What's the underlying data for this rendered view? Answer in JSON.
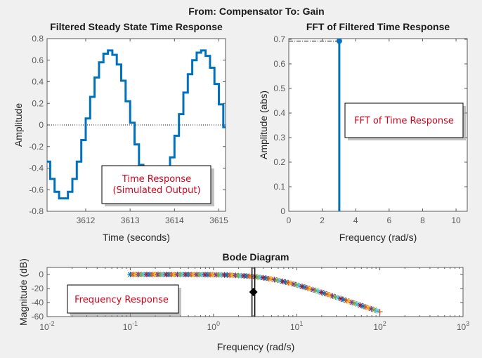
{
  "figure_title": "From: Compensator  To: Gain",
  "colors": {
    "line": "#0072BD",
    "axis": "#5a5a5a",
    "note": "#d0021b",
    "markers": [
      "#0072BD",
      "#D95319",
      "#EDB120",
      "#7E2F8E",
      "#77AC30",
      "#4DBEEE",
      "#A2142F"
    ]
  },
  "chart_data": [
    {
      "type": "line",
      "title": "Filtered Steady State Time Response",
      "xlabel": "Time (seconds)",
      "ylabel": "Amplitude",
      "xlim": [
        3611.13,
        3615.15
      ],
      "ylim": [
        -0.8,
        0.8
      ],
      "xticks": [
        3612,
        3613,
        3614,
        3615
      ],
      "xtick_labels": [
        "3612",
        "3613",
        "3614",
        "3615"
      ],
      "yticks": [
        -0.8,
        -0.6,
        -0.4,
        -0.2,
        0,
        0.2,
        0.4,
        0.6,
        0.8
      ],
      "ytick_labels": [
        "-0.8",
        "-0.6",
        "-0.4",
        "-0.2",
        "0",
        "0.2",
        "0.4",
        "0.6",
        "0.8"
      ],
      "step": 0.1,
      "x": [
        3611.1,
        3611.2,
        3611.3,
        3611.4,
        3611.5,
        3611.6,
        3611.7,
        3611.8,
        3611.9,
        3612.0,
        3612.1,
        3612.2,
        3612.3,
        3612.4,
        3612.5,
        3612.6,
        3612.7,
        3612.8,
        3612.9,
        3613.0,
        3613.1,
        3613.2,
        3613.3,
        3613.4,
        3613.5,
        3613.6,
        3613.7,
        3613.8,
        3613.9,
        3614.0,
        3614.1,
        3614.2,
        3614.3,
        3614.4,
        3614.5,
        3614.6,
        3614.7,
        3614.8,
        3614.9,
        3615.0,
        3615.1
      ],
      "y": [
        -0.34,
        -0.5,
        -0.62,
        -0.68,
        -0.68,
        -0.62,
        -0.5,
        -0.34,
        -0.14,
        0.06,
        0.26,
        0.44,
        0.58,
        0.66,
        0.69,
        0.65,
        0.56,
        0.41,
        0.22,
        0.02,
        -0.18,
        -0.37,
        -0.53,
        -0.64,
        -0.69,
        -0.67,
        -0.6,
        -0.47,
        -0.3,
        -0.1,
        0.1,
        0.3,
        0.47,
        0.6,
        0.67,
        0.69,
        0.64,
        0.53,
        0.38,
        0.19,
        -0.02
      ],
      "annotation": {
        "line1": "Time Response",
        "line2": "(Simulated Output)"
      }
    },
    {
      "type": "stem",
      "title": "FFT of Filtered Time Response",
      "xlabel": "Frequency (rad/s)",
      "ylabel": "Amplitude (abs)",
      "xlim": [
        0,
        10.67
      ],
      "ylim": [
        0,
        0.7
      ],
      "xticks": [
        0,
        2,
        4,
        6,
        8,
        10
      ],
      "xtick_labels": [
        "0",
        "2",
        "4",
        "6",
        "8",
        "10"
      ],
      "yticks": [
        0,
        0.1,
        0.2,
        0.3,
        0.4,
        0.5,
        0.6,
        0.7
      ],
      "ytick_labels": [
        "0",
        "0.1",
        "0.2",
        "0.3",
        "0.4",
        "0.5",
        "0.6",
        "0.7"
      ],
      "x": [
        3.02
      ],
      "y": [
        0.693
      ],
      "annotation": {
        "line1": "FFT of Time Response"
      }
    },
    {
      "type": "scatter",
      "title": "Bode Diagram",
      "xlabel": "Frequency  (rad/s)",
      "ylabel": "Magnitude (dB)",
      "xscale": "log",
      "xlim": [
        0.01,
        1000
      ],
      "ylim": [
        -60,
        10
      ],
      "xtick_exponents": [
        "-2",
        "-1",
        "0",
        "1",
        "2",
        "3"
      ],
      "xtick_base": "10",
      "yticks": [
        -60,
        -40,
        -20,
        0
      ],
      "ytick_labels": [
        "-60",
        "-40",
        "-20",
        "0"
      ],
      "x": [
        0.1,
        0.126,
        0.158,
        0.2,
        0.251,
        0.316,
        0.398,
        0.501,
        0.631,
        0.794,
        1,
        1.26,
        1.58,
        2,
        2.51,
        3.16,
        3.98,
        5.01,
        6.31,
        7.94,
        10,
        12.6,
        15.8,
        20,
        25.1,
        31.6,
        39.8,
        50.1,
        63.1,
        79.4,
        100
      ],
      "y": [
        0,
        -0.01,
        -0.01,
        -0.02,
        -0.02,
        -0.04,
        -0.06,
        -0.1,
        -0.15,
        -0.24,
        -0.38,
        -0.6,
        -0.93,
        -1.45,
        -2.2,
        -3.2,
        -4.7,
        -6.6,
        -8.9,
        -11.7,
        -14.9,
        -18.3,
        -21.8,
        -25.6,
        -29.4,
        -33.3,
        -37.2,
        -41.2,
        -45.2,
        -49.1,
        -53.1
      ],
      "marker_line_freq": 3.02,
      "marker_point_db": -25,
      "annotation": {
        "line1": "Frequency Response"
      }
    }
  ]
}
